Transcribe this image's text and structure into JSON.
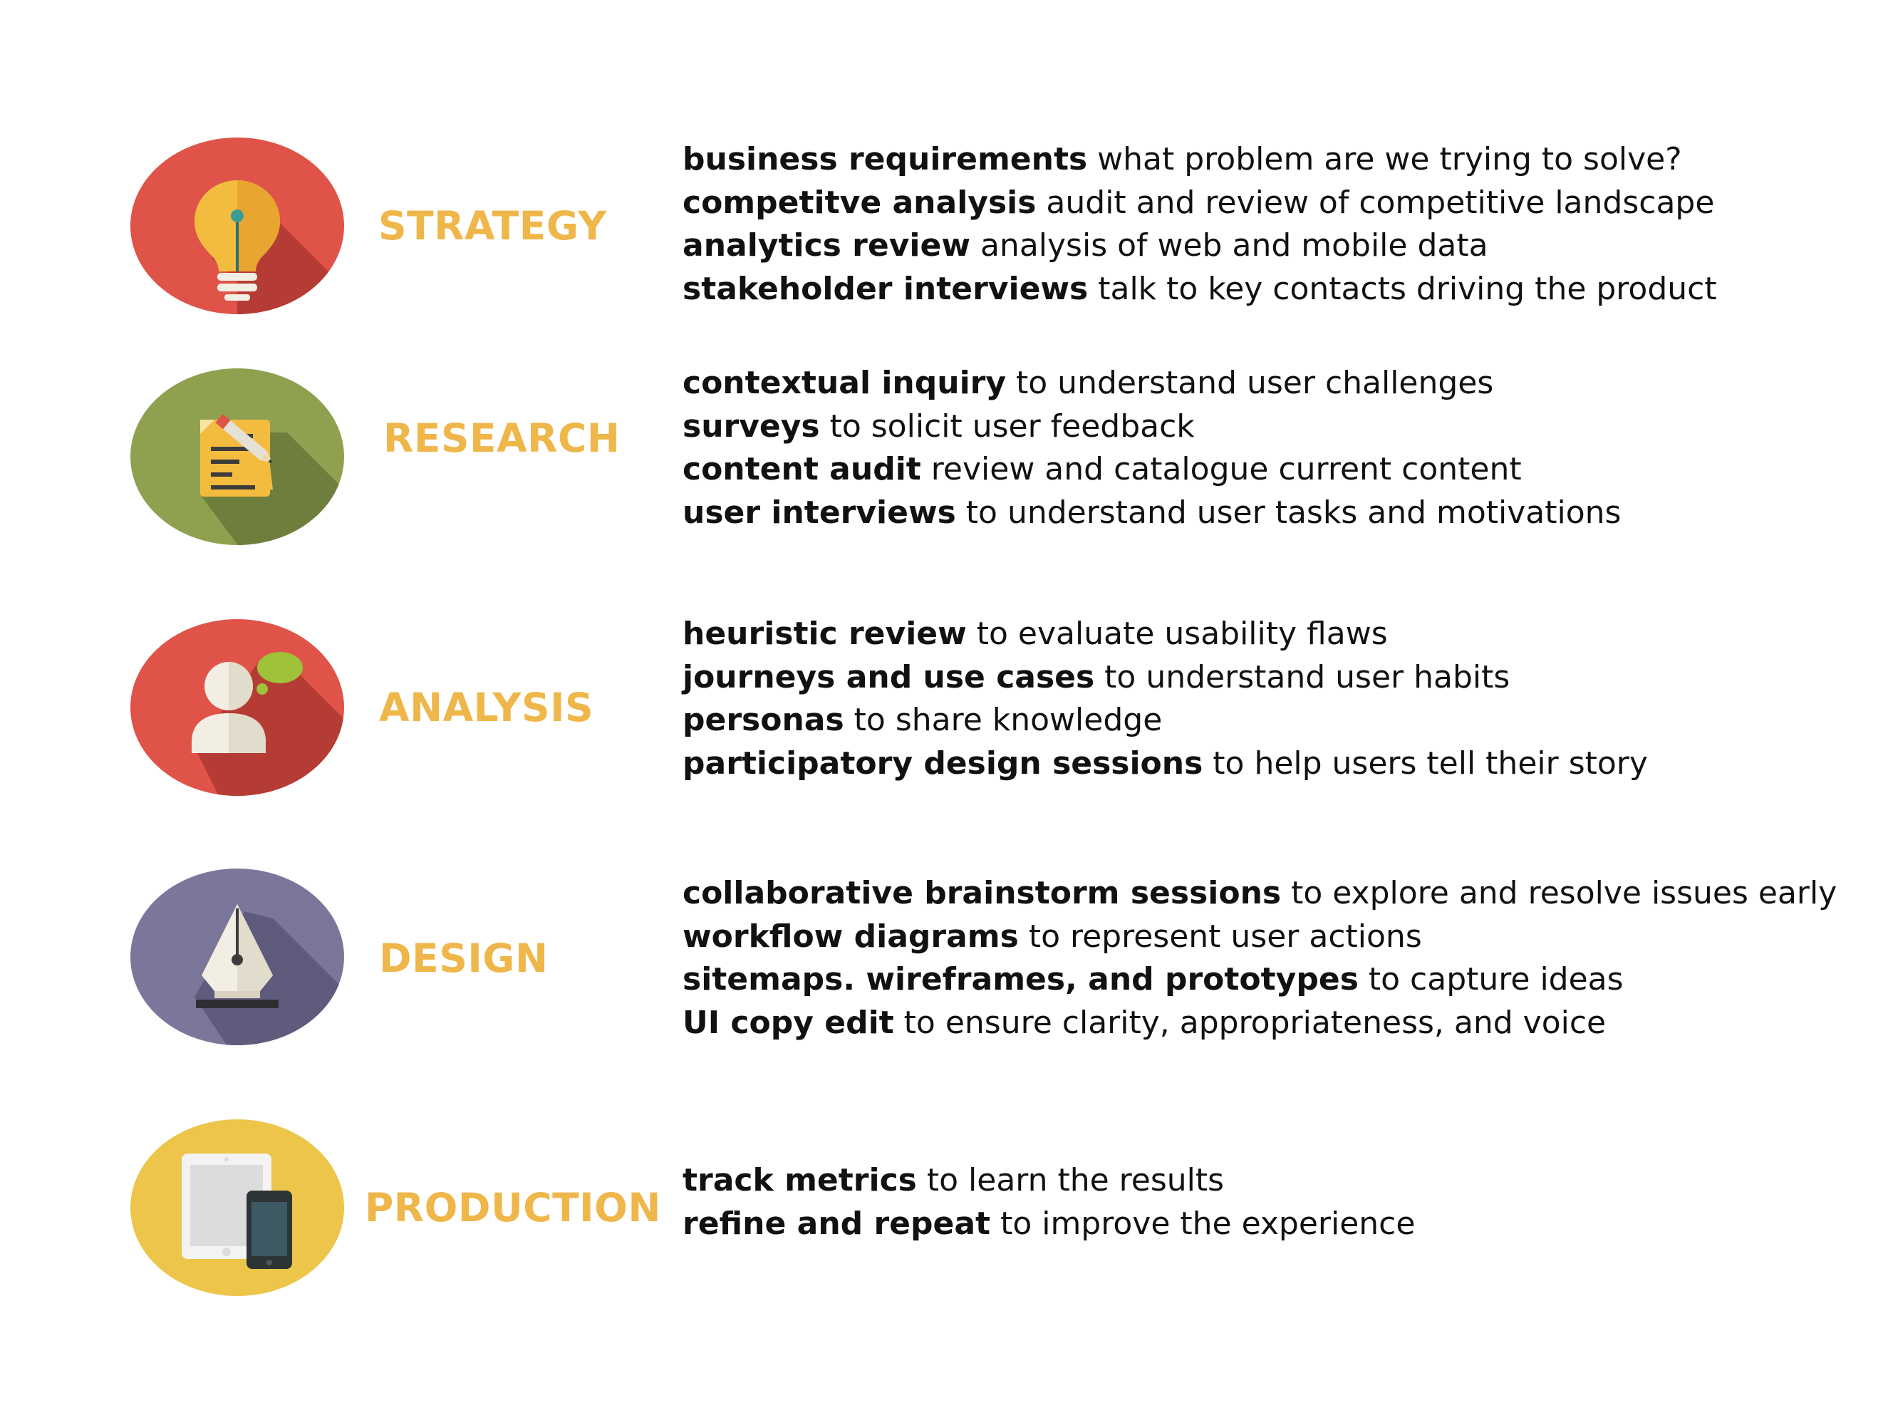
{
  "colors": {
    "label": "#efb64a",
    "strategy_circle": "#df5348",
    "research_circle": "#8fa14f",
    "analysis_circle": "#df5348",
    "design_circle": "#7b779b",
    "production_circle": "#ecc54a"
  },
  "phases": [
    {
      "label": "STRATEGY",
      "icon": "lightbulb-icon",
      "items": [
        {
          "term": "business requirements",
          "desc": " what problem are we trying to solve?"
        },
        {
          "term": "competitve analysis",
          "desc": " audit and review of competitive landscape"
        },
        {
          "term": "analytics review",
          "desc": " analysis of web and mobile data"
        },
        {
          "term": "stakeholder interviews",
          "desc": " talk to key contacts driving the product"
        }
      ]
    },
    {
      "label": "RESEARCH",
      "icon": "document-pencil-icon",
      "items": [
        {
          "term": "contextual inquiry",
          "desc": " to understand user challenges"
        },
        {
          "term": "surveys",
          "desc": " to solicit user feedback"
        },
        {
          "term": "content audit",
          "desc": " review and catalogue current content"
        },
        {
          "term": "user interviews",
          "desc": " to understand user tasks and motivations"
        }
      ]
    },
    {
      "label": "ANALYSIS",
      "icon": "user-speech-bubble-icon",
      "items": [
        {
          "term": "heuristic review",
          "desc": " to evaluate usability flaws"
        },
        {
          "term": "journeys and use cases",
          "desc": " to understand user habits"
        },
        {
          "term": "personas",
          "desc": " to share knowledge"
        },
        {
          "term": "participatory design sessions",
          "desc": " to help users tell their story"
        }
      ]
    },
    {
      "label": "DESIGN",
      "icon": "pen-nib-icon",
      "items": [
        {
          "term": "collaborative brainstorm sessions",
          "desc": " to explore and resolve issues early"
        },
        {
          "term": "workflow diagrams",
          "desc": " to represent user actions"
        },
        {
          "term": "sitemaps. wireframes, and prototypes",
          "desc": " to capture ideas"
        },
        {
          "term": "UI copy edit",
          "desc": " to ensure clarity, appropriateness, and voice"
        }
      ]
    },
    {
      "label": "PRODUCTION",
      "icon": "tablet-phone-icon",
      "items": [
        {
          "term": "track metrics",
          "desc": " to learn the results"
        },
        {
          "term": "refine and repeat",
          "desc": " to improve the experience"
        }
      ]
    }
  ]
}
